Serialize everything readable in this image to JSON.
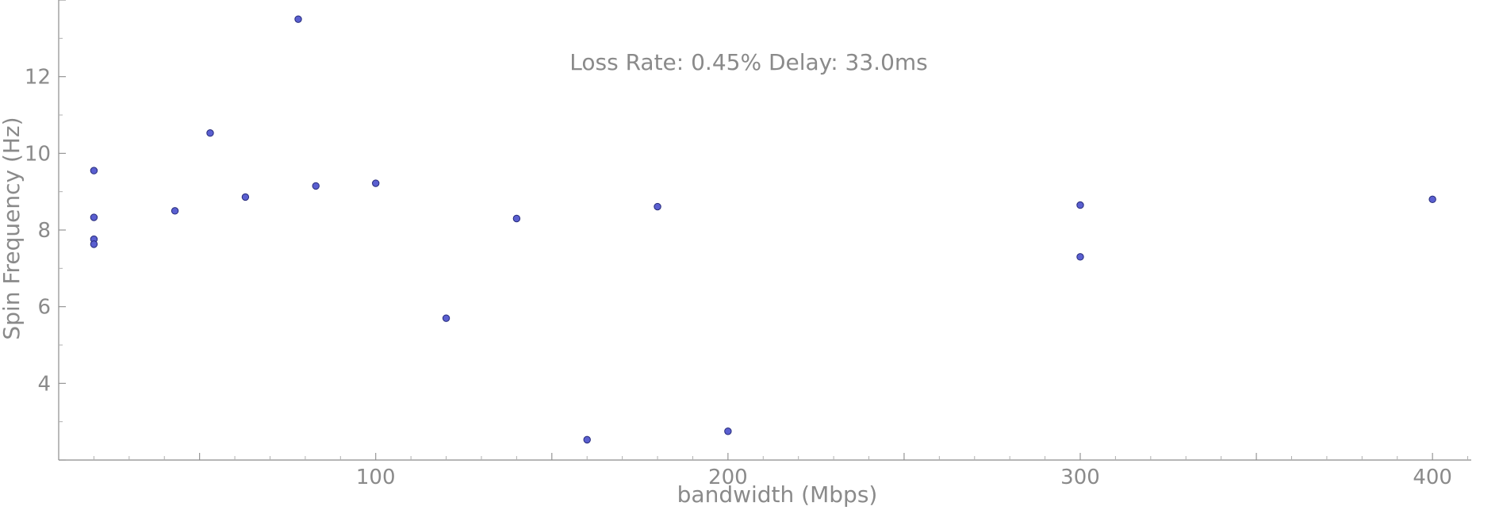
{
  "chart_data": {
    "type": "scatter",
    "title": "Loss Rate: 0.45% Delay: 33.0ms",
    "xlabel": "bandwidth (Mbps)",
    "ylabel": "Spin Frequency (Hz)",
    "xlim": [
      10,
      411
    ],
    "ylim": [
      2,
      14
    ],
    "xticks": [
      100,
      200,
      300,
      400
    ],
    "yticks": [
      4,
      6,
      8,
      10,
      12
    ],
    "grid": false,
    "series": [
      {
        "points": [
          {
            "x": 20,
            "y": 9.55
          },
          {
            "x": 20,
            "y": 8.33
          },
          {
            "x": 20,
            "y": 7.76
          },
          {
            "x": 20,
            "y": 7.63
          },
          {
            "x": 43,
            "y": 8.5
          },
          {
            "x": 53,
            "y": 10.53
          },
          {
            "x": 63,
            "y": 8.86
          },
          {
            "x": 78,
            "y": 13.5
          },
          {
            "x": 83,
            "y": 9.15
          },
          {
            "x": 100,
            "y": 9.22
          },
          {
            "x": 120,
            "y": 5.7
          },
          {
            "x": 140,
            "y": 8.3
          },
          {
            "x": 160,
            "y": 2.53
          },
          {
            "x": 180,
            "y": 8.61
          },
          {
            "x": 200,
            "y": 2.75
          },
          {
            "x": 300,
            "y": 8.65
          },
          {
            "x": 300,
            "y": 7.3
          },
          {
            "x": 400,
            "y": 8.8
          }
        ]
      }
    ]
  }
}
